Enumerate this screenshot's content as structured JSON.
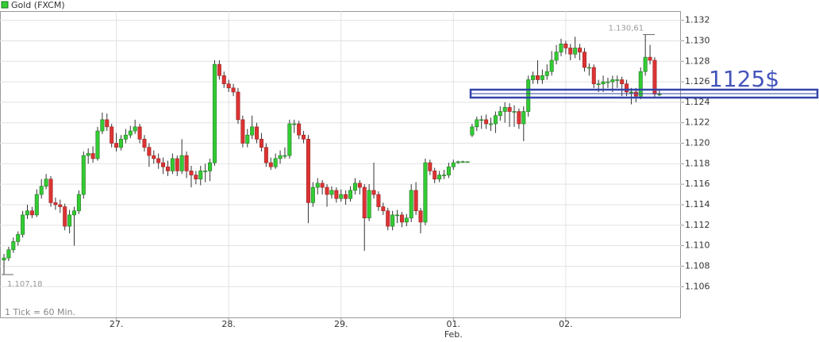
{
  "chart_data": {
    "type": "candlestick",
    "title": "Gold (FXCM)",
    "footnote": "1 Tick = 60 Min.",
    "annotation": "1125$",
    "up_color": "#33cc33",
    "down_color": "#dd3333",
    "grid": true,
    "ylim": [
      1.103,
      1.1329
    ],
    "yticks": [
      1.106,
      1.108,
      {
        "value": 1.11,
        "label": "1.110"
      },
      1.112,
      1.114,
      1.116,
      1.118,
      {
        "value": 1.12,
        "label": "1.120"
      },
      1.122,
      1.124,
      1.126,
      1.128,
      {
        "value": 1.13,
        "label": "1.130"
      },
      1.132
    ],
    "xlim": [
      -0.85,
      144.6
    ],
    "xticks": [
      {
        "value": 24,
        "label": "27."
      },
      {
        "value": 48,
        "label": "28."
      },
      {
        "value": 72,
        "label": "29."
      },
      {
        "value": 96,
        "label": "01.",
        "sublabel": "Feb."
      },
      {
        "value": 120,
        "label": "02."
      }
    ],
    "extremes": {
      "low": {
        "index": 0,
        "value": 1.10718,
        "label": "1.107,18"
      },
      "high": {
        "index": 137,
        "value": 1.13061,
        "label": "1.130,61"
      }
    },
    "open": [
      1.1086,
      1.1088,
      1.1096,
      1.1104,
      1.1111,
      1.113,
      1.1134,
      1.113,
      1.115,
      1.1158,
      1.1165,
      1.1142,
      1.114,
      1.1138,
      1.1119,
      1.113,
      1.1134,
      1.115,
      1.1188,
      1.119,
      1.1185,
      1.1212,
      1.1223,
      1.1216,
      1.12,
      1.1196,
      1.1204,
      1.1208,
      1.1212,
      1.1216,
      1.1204,
      1.1196,
      1.1188,
      1.1185,
      1.1181,
      1.1177,
      1.1173,
      1.1185,
      1.1173,
      1.1188,
      1.1173,
      1.1169,
      1.1165,
      1.1173,
      1.1173,
      1.1181,
      1.1277,
      1.1266,
      1.1258,
      1.1254,
      1.125,
      1.1223,
      1.12,
      1.1208,
      1.1216,
      1.1204,
      1.1196,
      1.1181,
      1.1177,
      1.1185,
      1.1188,
      1.1188,
      1.1219,
      1.1219,
      1.1208,
      1.1204,
      1.1142,
      1.1157,
      1.1161,
      1.1157,
      1.115,
      1.1154,
      1.1146,
      1.115,
      1.1146,
      1.1154,
      1.1161,
      1.1157,
      1.1127,
      1.1154,
      1.115,
      1.1138,
      1.1134,
      1.1119,
      1.113,
      1.113,
      1.1123,
      1.1127,
      1.1154,
      1.1134,
      1.1123,
      1.1181,
      1.1173,
      1.1165,
      1.1169,
      1.1169,
      1.1177,
      1.1181,
      1.1182,
      1.1182,
      1.1208,
      1.1216,
      1.1223,
      1.1223,
      1.1219,
      1.1219,
      1.1227,
      1.1231,
      1.1235,
      1.1231,
      1.1231,
      1.1219,
      1.1231,
      1.1262,
      1.1266,
      1.1262,
      1.1266,
      1.127,
      1.1281,
      1.1289,
      1.1297,
      1.1293,
      1.1287,
      1.1293,
      1.1289,
      1.1274,
      1.1274,
      1.1258,
      1.1258,
      1.126,
      1.126,
      1.1262,
      1.1262,
      1.1258,
      1.125,
      1.125,
      1.1246,
      1.127,
      1.1284,
      1.1281,
      1.1248
    ],
    "high": [
      1.1092,
      1.1099,
      1.1108,
      1.1114,
      1.1134,
      1.114,
      1.1138,
      1.1155,
      1.1165,
      1.117,
      1.1168,
      1.1147,
      1.1145,
      1.1141,
      1.1135,
      1.1138,
      1.1154,
      1.1192,
      1.1195,
      1.1197,
      1.1216,
      1.123,
      1.1229,
      1.1219,
      1.121,
      1.1208,
      1.1214,
      1.1217,
      1.1223,
      1.1219,
      1.1208,
      1.12,
      1.1193,
      1.119,
      1.1186,
      1.1183,
      1.119,
      1.1188,
      1.1204,
      1.1192,
      1.1178,
      1.1173,
      1.1178,
      1.118,
      1.1185,
      1.1281,
      1.1281,
      1.127,
      1.1262,
      1.1258,
      1.1254,
      1.1227,
      1.1214,
      1.1227,
      1.122,
      1.121,
      1.12,
      1.1186,
      1.119,
      1.1193,
      1.1196,
      1.1223,
      1.1223,
      1.1222,
      1.1212,
      1.1208,
      1.1162,
      1.1166,
      1.1164,
      1.116,
      1.1158,
      1.1157,
      1.1155,
      1.1154,
      1.1158,
      1.1166,
      1.1164,
      1.116,
      1.116,
      1.1181,
      1.1153,
      1.1142,
      1.1137,
      1.1134,
      1.1135,
      1.1133,
      1.1131,
      1.116,
      1.1162,
      1.1137,
      1.1185,
      1.1184,
      1.1176,
      1.1173,
      1.1174,
      1.1181,
      1.1184,
      1.1183,
      1.1183,
      1.1182,
      1.1219,
      1.1226,
      1.1227,
      1.1228,
      1.1225,
      1.1231,
      1.1236,
      1.124,
      1.1239,
      1.1237,
      1.1234,
      1.1236,
      1.1266,
      1.127,
      1.1281,
      1.1272,
      1.1277,
      1.129,
      1.1296,
      1.1302,
      1.13,
      1.1297,
      1.1304,
      1.1297,
      1.1293,
      1.1278,
      1.1277,
      1.1262,
      1.1266,
      1.1264,
      1.1266,
      1.1266,
      1.1265,
      1.1262,
      1.1254,
      1.1254,
      1.1274,
      1.13061,
      1.1296,
      1.1284,
      1.1252
    ],
    "low": [
      1.10718,
      1.1085,
      1.1093,
      1.11,
      1.1108,
      1.1126,
      1.1127,
      1.1128,
      1.1146,
      1.1155,
      1.1138,
      1.1135,
      1.1132,
      1.1115,
      1.1112,
      1.11,
      1.1131,
      1.1146,
      1.118,
      1.1181,
      1.1183,
      1.1209,
      1.1212,
      1.1196,
      1.1192,
      1.1193,
      1.12,
      1.1205,
      1.1209,
      1.12,
      1.1192,
      1.1177,
      1.118,
      1.1175,
      1.117,
      1.1168,
      1.117,
      1.1168,
      1.117,
      1.1166,
      1.1157,
      1.116,
      1.1159,
      1.1162,
      1.1163,
      1.1178,
      1.1262,
      1.1254,
      1.125,
      1.1246,
      1.1219,
      1.1196,
      1.1196,
      1.1204,
      1.12,
      1.1192,
      1.1177,
      1.1174,
      1.1175,
      1.118,
      1.1185,
      1.1185,
      1.121,
      1.1204,
      1.12,
      1.1122,
      1.1138,
      1.115,
      1.115,
      1.1138,
      1.1146,
      1.1142,
      1.1143,
      1.114,
      1.1143,
      1.115,
      1.115,
      1.1095,
      1.1124,
      1.1146,
      1.1134,
      1.113,
      1.1115,
      1.1115,
      1.1122,
      1.1118,
      1.1119,
      1.1123,
      1.113,
      1.1112,
      1.112,
      1.1169,
      1.1161,
      1.1162,
      1.1165,
      1.1166,
      1.1174,
      1.118,
      1.1181,
      1.1182,
      1.1206,
      1.1212,
      1.1214,
      1.1214,
      1.1212,
      1.121,
      1.1222,
      1.122,
      1.1216,
      1.1216,
      1.1214,
      1.1202,
      1.1226,
      1.1258,
      1.1258,
      1.1258,
      1.1262,
      1.1266,
      1.1277,
      1.1285,
      1.1287,
      1.1281,
      1.1283,
      1.1281,
      1.127,
      1.1266,
      1.1254,
      1.125,
      1.125,
      1.1254,
      1.125,
      1.1254,
      1.1246,
      1.1246,
      1.1238,
      1.124,
      1.1243,
      1.1266,
      1.1277,
      1.1244,
      1.1246
    ],
    "close": [
      1.1088,
      1.1096,
      1.1104,
      1.1111,
      1.113,
      1.1134,
      1.113,
      1.115,
      1.1158,
      1.1165,
      1.1142,
      1.114,
      1.1138,
      1.1119,
      1.113,
      1.1134,
      1.115,
      1.1188,
      1.119,
      1.1185,
      1.1212,
      1.1223,
      1.1216,
      1.12,
      1.1196,
      1.1204,
      1.1208,
      1.1212,
      1.1216,
      1.1204,
      1.1196,
      1.1188,
      1.1185,
      1.1181,
      1.1177,
      1.1173,
      1.1185,
      1.1173,
      1.1188,
      1.1173,
      1.1169,
      1.1165,
      1.1173,
      1.1173,
      1.1181,
      1.1277,
      1.1266,
      1.1258,
      1.1254,
      1.125,
      1.1223,
      1.12,
      1.1208,
      1.1216,
      1.1204,
      1.1196,
      1.1181,
      1.1177,
      1.1185,
      1.1188,
      1.1188,
      1.1219,
      1.1219,
      1.1208,
      1.1204,
      1.1142,
      1.1157,
      1.1161,
      1.1157,
      1.115,
      1.1154,
      1.1146,
      1.115,
      1.1146,
      1.1154,
      1.1161,
      1.1157,
      1.1127,
      1.1154,
      1.115,
      1.1138,
      1.1134,
      1.1119,
      1.113,
      1.113,
      1.1123,
      1.1127,
      1.1154,
      1.1134,
      1.1123,
      1.1181,
      1.1173,
      1.1165,
      1.1169,
      1.1169,
      1.1177,
      1.1181,
      1.1182,
      1.1182,
      1.1182,
      1.1216,
      1.1223,
      1.1223,
      1.1219,
      1.1219,
      1.1227,
      1.1231,
      1.1235,
      1.1231,
      1.1231,
      1.1219,
      1.1231,
      1.1262,
      1.1266,
      1.1262,
      1.1266,
      1.127,
      1.1281,
      1.1289,
      1.1297,
      1.1293,
      1.1287,
      1.1293,
      1.1289,
      1.1274,
      1.1274,
      1.1258,
      1.1258,
      1.126,
      1.126,
      1.1262,
      1.1262,
      1.1258,
      1.125,
      1.125,
      1.1246,
      1.127,
      1.1284,
      1.1281,
      1.1248,
      1.1248
    ]
  }
}
